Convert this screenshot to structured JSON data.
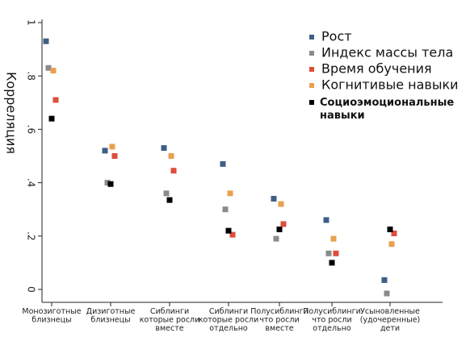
{
  "chart_data": {
    "type": "scatter",
    "ylabel": "Корреляция",
    "ylim": [
      0,
      1
    ],
    "yticks": [
      {
        "value": 0,
        "label": "0"
      },
      {
        "value": 0.2,
        "label": ".2"
      },
      {
        "value": 0.4,
        "label": ".4"
      },
      {
        "value": 0.6,
        "label": ".6"
      },
      {
        "value": 0.8,
        "label": ".8"
      },
      {
        "value": 1,
        "label": "1"
      }
    ],
    "categories": [
      [
        "Монозиготные",
        "близнецы"
      ],
      [
        "Дизиготные",
        "близнецы"
      ],
      [
        "Сиблинги",
        "которые росли",
        "вместе"
      ],
      [
        "Сиблинги",
        "которые росли",
        "отдельно"
      ],
      [
        "Полусиблинги",
        "что росли",
        "вместе"
      ],
      [
        "Полусиблинги",
        "что росли",
        "отдельно"
      ],
      [
        "Усыновленные",
        "(удочеренные)",
        "дети"
      ]
    ],
    "legend_position": "top-right",
    "grid": false,
    "series": [
      {
        "name": "Рост",
        "color": "#3f5f86",
        "values": [
          0.93,
          0.52,
          0.53,
          0.47,
          0.34,
          0.26,
          0.035
        ]
      },
      {
        "name": "Индекс массы тела",
        "color": "#8b8b8b",
        "values": [
          0.83,
          0.4,
          0.36,
          0.3,
          0.19,
          0.135,
          -0.015
        ]
      },
      {
        "name": "Время обучения",
        "color": "#dc4f3c",
        "values": [
          0.71,
          0.5,
          0.445,
          0.205,
          0.245,
          0.135,
          0.21
        ]
      },
      {
        "name": "Когнитивые навыки",
        "color": "#e9a04f",
        "values": [
          0.82,
          0.535,
          0.5,
          0.36,
          0.32,
          0.19,
          0.17
        ]
      },
      {
        "name": "Социоэмоциональные навыки",
        "color": "#000000",
        "values": [
          0.64,
          0.395,
          0.335,
          0.22,
          0.225,
          0.1,
          0.225
        ]
      }
    ]
  }
}
